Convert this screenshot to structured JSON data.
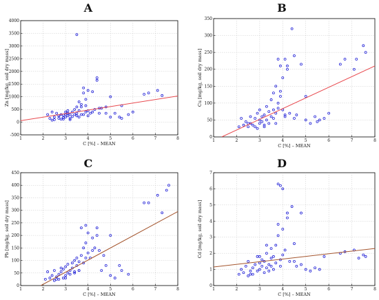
{
  "chart_data": [
    {
      "type": "scatter",
      "panel": "A",
      "xlabel": "C [%] – MEAN",
      "ylabel": "Zn [mg/kg, soil dry mass]",
      "xlim": [
        1,
        8
      ],
      "ylim": [
        -500,
        4000
      ],
      "xticks": [
        1,
        2,
        3,
        4,
        5,
        6,
        7,
        8
      ],
      "yticks": [
        -500,
        0,
        500,
        1000,
        1500,
        2000,
        2500,
        3000,
        3500,
        4000
      ],
      "grid": true,
      "fit_color": "#e8474c",
      "fit": {
        "x": [
          1,
          8
        ],
        "y": [
          60,
          1030
        ]
      },
      "points": {
        "x": [
          2.2,
          2.3,
          2.4,
          2.5,
          2.5,
          2.6,
          2.7,
          2.7,
          2.8,
          2.8,
          2.9,
          2.9,
          3.0,
          3.0,
          3.1,
          3.1,
          3.2,
          3.2,
          3.3,
          3.3,
          3.4,
          3.4,
          3.5,
          3.5,
          3.5,
          3.6,
          3.6,
          3.7,
          3.7,
          3.7,
          3.8,
          3.8,
          3.9,
          3.9,
          4.0,
          4.0,
          4.1,
          4.2,
          4.3,
          4.4,
          4.5,
          4.6,
          4.8,
          5.0,
          5.2,
          5.4,
          5.5,
          5.8,
          6.5,
          6.7,
          7.1,
          7.3,
          3.6,
          4.4,
          3.8,
          3.9,
          4.2,
          4.0,
          3.2,
          2.4,
          5.0,
          5.5,
          6.0,
          4.5,
          3.5,
          2.9,
          4.8,
          3.1,
          2.7,
          3.0
        ],
        "y": [
          300,
          150,
          400,
          200,
          100,
          350,
          150,
          250,
          300,
          120,
          280,
          180,
          400,
          200,
          350,
          250,
          300,
          150,
          400,
          220,
          500,
          300,
          350,
          250,
          3450,
          800,
          450,
          600,
          300,
          700,
          1150,
          1350,
          900,
          400,
          450,
          1250,
          350,
          400,
          500,
          1750,
          350,
          550,
          600,
          1000,
          350,
          200,
          650,
          300,
          1100,
          1150,
          1250,
          1050,
          200,
          1650,
          300,
          650,
          1200,
          250,
          100,
          80,
          200,
          150,
          400,
          550,
          600,
          120,
          350,
          450,
          250,
          320
        ]
      }
    },
    {
      "type": "scatter",
      "panel": "B",
      "xlabel": "C [%] – MEAN",
      "ylabel": "Cu [mg/kg, soil dry mass]",
      "xlim": [
        1,
        8
      ],
      "ylim": [
        0,
        350
      ],
      "xticks": [
        1,
        2,
        3,
        4,
        5,
        6,
        7,
        8
      ],
      "yticks": [
        0,
        50,
        100,
        150,
        200,
        250,
        300,
        350
      ],
      "grid": true,
      "fit_color": "#e8474c",
      "fit": {
        "x": [
          1.35,
          8
        ],
        "y": [
          0,
          210
        ]
      },
      "points": {
        "x": [
          2.1,
          2.2,
          2.3,
          2.4,
          2.5,
          2.6,
          2.6,
          2.7,
          2.8,
          2.8,
          2.9,
          3.0,
          3.0,
          3.1,
          3.1,
          3.2,
          3.2,
          3.3,
          3.3,
          3.4,
          3.4,
          3.5,
          3.5,
          3.6,
          3.6,
          3.7,
          3.7,
          3.8,
          3.8,
          3.9,
          3.9,
          4.0,
          4.0,
          4.1,
          4.1,
          4.2,
          4.3,
          4.4,
          4.5,
          4.6,
          4.8,
          5.0,
          5.2,
          5.4,
          5.6,
          5.8,
          6.5,
          6.7,
          7.1,
          7.2,
          7.5,
          7.6,
          3.8,
          4.1,
          3.9,
          5.0,
          4.5,
          3.6,
          3.0,
          2.9,
          3.7,
          3.2,
          4.2,
          5.5,
          6.0,
          2.5
        ],
        "y": [
          30,
          55,
          35,
          45,
          30,
          60,
          40,
          35,
          55,
          30,
          70,
          40,
          80,
          45,
          60,
          35,
          65,
          50,
          90,
          40,
          75,
          60,
          110,
          55,
          130,
          70,
          150,
          100,
          230,
          120,
          210,
          80,
          175,
          60,
          230,
          200,
          70,
          320,
          240,
          65,
          215,
          50,
          40,
          60,
          50,
          55,
          215,
          230,
          200,
          230,
          270,
          250,
          85,
          65,
          135,
          120,
          55,
          80,
          50,
          25,
          40,
          30,
          210,
          45,
          70,
          40
        ]
      }
    },
    {
      "type": "scatter",
      "panel": "C",
      "xlabel": "C [%] – MEAN",
      "ylabel": "Pb [mg/kg, soil dry mass]",
      "xlim": [
        1,
        8
      ],
      "ylim": [
        0,
        450
      ],
      "xticks": [
        1,
        2,
        3,
        4,
        5,
        6,
        7,
        8
      ],
      "yticks": [
        0,
        50,
        100,
        150,
        200,
        250,
        300,
        350,
        400,
        450
      ],
      "grid": true,
      "fit_color": "#a3532b",
      "fit": {
        "x": [
          1.9,
          8
        ],
        "y": [
          0,
          295
        ]
      },
      "points": {
        "x": [
          2.1,
          2.2,
          2.3,
          2.4,
          2.5,
          2.5,
          2.6,
          2.7,
          2.7,
          2.8,
          2.9,
          2.9,
          3.0,
          3.0,
          3.1,
          3.1,
          3.2,
          3.2,
          3.3,
          3.3,
          3.4,
          3.4,
          3.5,
          3.5,
          3.6,
          3.6,
          3.7,
          3.7,
          3.8,
          3.8,
          3.9,
          3.9,
          4.0,
          4.0,
          4.1,
          4.2,
          4.3,
          4.4,
          4.5,
          4.6,
          4.8,
          5.0,
          5.2,
          5.4,
          5.5,
          5.8,
          6.5,
          6.7,
          7.1,
          7.3,
          7.5,
          7.6,
          3.6,
          4.2,
          3.0,
          2.8,
          3.9,
          4.4,
          5.0,
          2.6,
          3.4,
          4.7
        ],
        "y": [
          25,
          55,
          30,
          40,
          20,
          60,
          35,
          45,
          25,
          55,
          30,
          65,
          40,
          75,
          50,
          85,
          60,
          45,
          90,
          70,
          100,
          55,
          80,
          110,
          60,
          95,
          120,
          230,
          150,
          90,
          240,
          170,
          130,
          210,
          110,
          190,
          150,
          200,
          140,
          60,
          80,
          40,
          30,
          80,
          60,
          45,
          330,
          330,
          360,
          290,
          380,
          400,
          60,
          140,
          30,
          70,
          110,
          230,
          200,
          25,
          50,
          120
        ]
      }
    },
    {
      "type": "scatter",
      "panel": "D",
      "xlabel": "C [%] – MEAN",
      "ylabel": "Cd [mg/kg, soil dry mass]",
      "xlim": [
        1,
        8
      ],
      "ylim": [
        0,
        7
      ],
      "xticks": [
        1,
        2,
        3,
        4,
        5,
        6,
        7,
        8
      ],
      "yticks": [
        0,
        1,
        2,
        3,
        4,
        5,
        6,
        7
      ],
      "grid": true,
      "fit_color": "#a3532b",
      "fit": {
        "x": [
          1,
          8
        ],
        "y": [
          1.15,
          2.3
        ]
      },
      "points": {
        "x": [
          2.1,
          2.2,
          2.3,
          2.4,
          2.5,
          2.5,
          2.6,
          2.7,
          2.7,
          2.8,
          2.9,
          2.9,
          3.0,
          3.0,
          3.1,
          3.1,
          3.2,
          3.2,
          3.3,
          3.3,
          3.4,
          3.4,
          3.5,
          3.5,
          3.6,
          3.6,
          3.7,
          3.7,
          3.8,
          3.8,
          3.9,
          3.9,
          4.0,
          4.0,
          4.1,
          4.2,
          4.3,
          4.4,
          4.5,
          4.6,
          4.8,
          5.0,
          5.2,
          5.4,
          5.6,
          5.8,
          6.5,
          6.7,
          7.1,
          7.3,
          7.5,
          7.6,
          3.8,
          4.0,
          4.2,
          3.5,
          3.0,
          2.6,
          4.5,
          4.8,
          3.3,
          3.9
        ],
        "y": [
          0.7,
          1.0,
          0.8,
          1.2,
          0.6,
          1.5,
          0.9,
          1.1,
          0.7,
          1.3,
          1.8,
          0.9,
          1.4,
          1.0,
          1.6,
          1.2,
          0.8,
          1.5,
          1.1,
          2.0,
          1.3,
          0.9,
          1.7,
          1.2,
          1.0,
          1.8,
          2.5,
          1.4,
          6.3,
          3.1,
          6.2,
          1.6,
          1.9,
          6.0,
          2.2,
          4.5,
          1.5,
          4.9,
          2.6,
          1.2,
          4.5,
          1.0,
          0.9,
          1.1,
          1.0,
          1.8,
          2.0,
          2.1,
          2.2,
          1.7,
          1.9,
          1.8,
          3.8,
          3.5,
          4.2,
          2.3,
          1.8,
          0.7,
          1.5,
          1.3,
          2.5,
          1.2
        ]
      }
    }
  ]
}
